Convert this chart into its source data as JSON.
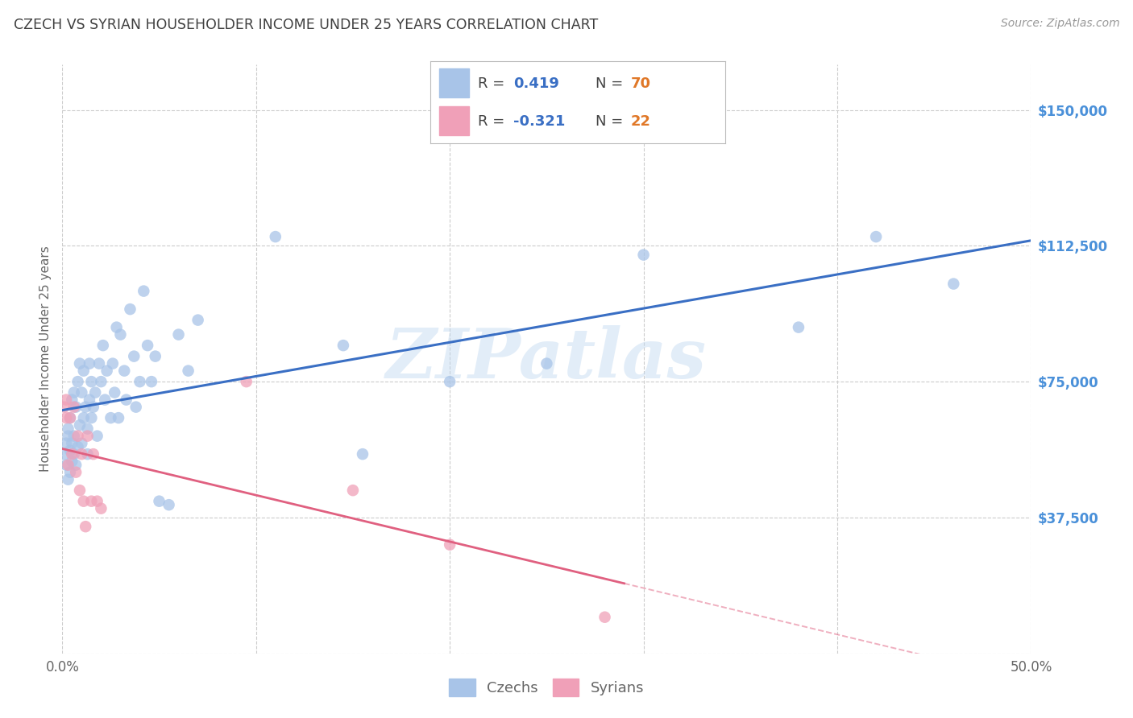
{
  "title": "CZECH VS SYRIAN HOUSEHOLDER INCOME UNDER 25 YEARS CORRELATION CHART",
  "source": "Source: ZipAtlas.com",
  "ylabel": "Householder Income Under 25 years",
  "xlim": [
    0.0,
    0.5
  ],
  "ylim": [
    0,
    162500
  ],
  "ytick_positions": [
    0,
    37500,
    75000,
    112500,
    150000
  ],
  "ytick_labels": [
    "",
    "$37,500",
    "$75,000",
    "$112,500",
    "$150,000"
  ],
  "xtick_positions": [
    0.0,
    0.1,
    0.2,
    0.3,
    0.4,
    0.5
  ],
  "xtick_labels": [
    "0.0%",
    "",
    "",
    "",
    "",
    "50.0%"
  ],
  "czech_color": "#a8c4e8",
  "czech_line_color": "#3a6fc4",
  "syrian_color": "#f0a0b8",
  "syrian_line_color": "#e06080",
  "czech_R": "0.419",
  "czech_N": "70",
  "syrian_R": "-0.321",
  "syrian_N": "22",
  "r_label_color": "#3a6fc4",
  "n_label_color": "#e07828",
  "watermark_text": "ZIPatlas",
  "legend_czechs": "Czechs",
  "legend_syrians": "Syrians",
  "czech_x": [
    0.001,
    0.002,
    0.002,
    0.003,
    0.003,
    0.003,
    0.004,
    0.004,
    0.004,
    0.005,
    0.005,
    0.005,
    0.006,
    0.006,
    0.006,
    0.007,
    0.007,
    0.008,
    0.008,
    0.009,
    0.009,
    0.01,
    0.01,
    0.011,
    0.011,
    0.012,
    0.013,
    0.013,
    0.014,
    0.014,
    0.015,
    0.015,
    0.016,
    0.017,
    0.018,
    0.019,
    0.02,
    0.021,
    0.022,
    0.023,
    0.025,
    0.026,
    0.027,
    0.028,
    0.029,
    0.03,
    0.032,
    0.033,
    0.035,
    0.037,
    0.038,
    0.04,
    0.042,
    0.044,
    0.046,
    0.048,
    0.05,
    0.055,
    0.06,
    0.065,
    0.07,
    0.11,
    0.145,
    0.155,
    0.2,
    0.25,
    0.3,
    0.38,
    0.42,
    0.46
  ],
  "czech_y": [
    55000,
    52000,
    58000,
    60000,
    48000,
    62000,
    56000,
    50000,
    65000,
    53000,
    58000,
    70000,
    55000,
    60000,
    72000,
    52000,
    68000,
    75000,
    57000,
    63000,
    80000,
    58000,
    72000,
    65000,
    78000,
    68000,
    62000,
    55000,
    70000,
    80000,
    65000,
    75000,
    68000,
    72000,
    60000,
    80000,
    75000,
    85000,
    70000,
    78000,
    65000,
    80000,
    72000,
    90000,
    65000,
    88000,
    78000,
    70000,
    95000,
    82000,
    68000,
    75000,
    100000,
    85000,
    75000,
    82000,
    42000,
    41000,
    88000,
    78000,
    92000,
    115000,
    85000,
    55000,
    75000,
    80000,
    110000,
    90000,
    115000,
    102000
  ],
  "syrian_x": [
    0.001,
    0.002,
    0.002,
    0.003,
    0.004,
    0.005,
    0.006,
    0.007,
    0.008,
    0.009,
    0.01,
    0.011,
    0.012,
    0.013,
    0.015,
    0.016,
    0.018,
    0.02,
    0.095,
    0.15,
    0.2,
    0.28
  ],
  "syrian_y": [
    68000,
    65000,
    70000,
    52000,
    65000,
    55000,
    68000,
    50000,
    60000,
    45000,
    55000,
    42000,
    35000,
    60000,
    42000,
    55000,
    42000,
    40000,
    75000,
    45000,
    30000,
    10000
  ],
  "bg_color": "#ffffff",
  "grid_color": "#cccccc",
  "title_color": "#404040",
  "axis_label_color": "#666666",
  "ytick_color": "#4a90d9",
  "xtick_color": "#666666"
}
